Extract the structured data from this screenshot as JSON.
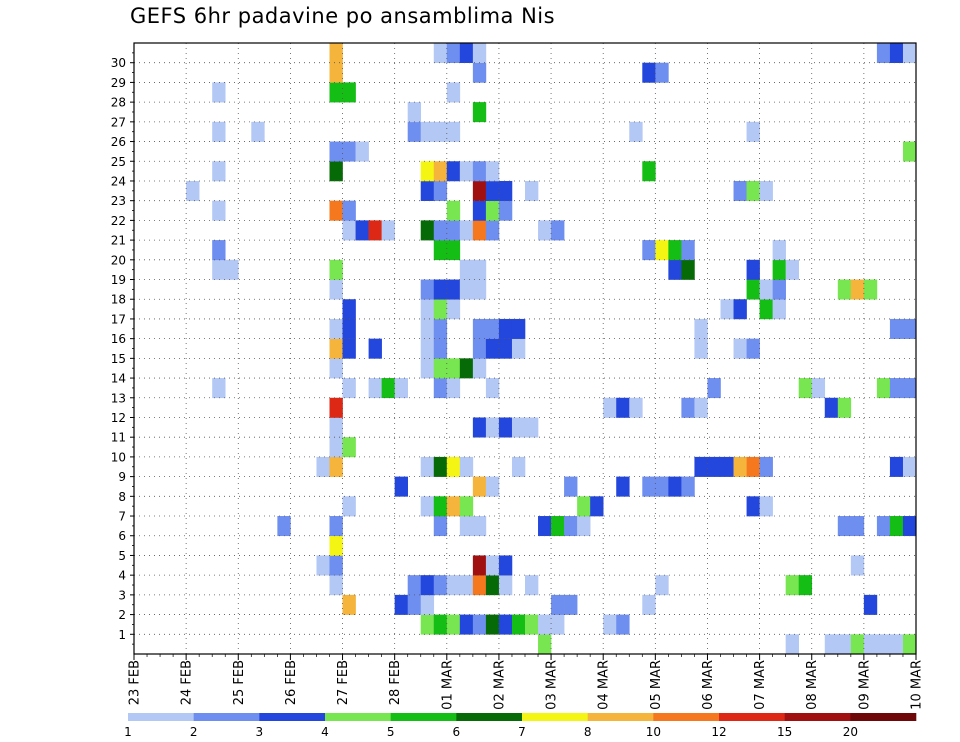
{
  "title": "GEFS 6hr padavine po ansamblima Nis",
  "chart_data": {
    "type": "heatmap",
    "title": "GEFS 6hr padavine po ansamblima Nis",
    "x_tick_labels": [
      "23 FEB",
      "24 FEB",
      "25 FEB",
      "26 FEB",
      "27 FEB",
      "28 FEB",
      "01 MAR",
      "02 MAR",
      "03 MAR",
      "04 MAR",
      "05 MAR",
      "06 MAR",
      "07 MAR",
      "08 MAR",
      "09 MAR",
      "10 MAR"
    ],
    "y_tick_labels": [
      "1",
      "2",
      "3",
      "4",
      "5",
      "6",
      "7",
      "8",
      "9",
      "10",
      "11",
      "12",
      "13",
      "14",
      "15",
      "16",
      "17",
      "18",
      "19",
      "20",
      "21",
      "22",
      "23",
      "24",
      "25",
      "26",
      "27",
      "28",
      "29",
      "30"
    ],
    "time_step": "6hr",
    "n_steps": 60,
    "members": 30,
    "grid": true,
    "colorbar": {
      "placement": "bottom",
      "tick_labels": [
        "1",
        "2",
        "3",
        "4",
        "5",
        "6",
        "7",
        "8",
        "10",
        "12",
        "15",
        "20"
      ],
      "colors": [
        "#b4c8f5",
        "#6e8ef0",
        "#2346dc",
        "#78e650",
        "#14be14",
        "#066b06",
        "#f5f514",
        "#f5b43c",
        "#f5781e",
        "#dc2814",
        "#a01010",
        "#6e0808"
      ]
    },
    "cells_format": "member: [[step, level], ...]",
    "cells": {
      "0": [
        [
          31,
          4
        ],
        [
          50,
          1
        ],
        [
          53,
          1
        ],
        [
          54,
          1
        ],
        [
          55,
          4
        ],
        [
          56,
          1
        ],
        [
          57,
          1
        ],
        [
          58,
          1
        ],
        [
          59,
          4
        ]
      ],
      "1": [
        [
          22,
          4
        ],
        [
          23,
          5
        ],
        [
          24,
          4
        ],
        [
          25,
          3
        ],
        [
          26,
          2
        ],
        [
          27,
          6
        ],
        [
          28,
          3
        ],
        [
          29,
          5
        ],
        [
          30,
          4
        ],
        [
          31,
          1
        ],
        [
          32,
          1
        ],
        [
          36,
          1
        ],
        [
          37,
          2
        ]
      ],
      "2": [
        [
          16,
          8
        ],
        [
          20,
          3
        ],
        [
          21,
          2
        ],
        [
          22,
          1
        ],
        [
          32,
          2
        ],
        [
          33,
          2
        ],
        [
          39,
          1
        ],
        [
          56,
          3
        ]
      ],
      "3": [
        [
          15,
          1
        ],
        [
          21,
          2
        ],
        [
          22,
          3
        ],
        [
          23,
          2
        ],
        [
          24,
          1
        ],
        [
          25,
          1
        ],
        [
          26,
          9
        ],
        [
          27,
          6
        ],
        [
          28,
          1
        ],
        [
          30,
          1
        ],
        [
          40,
          1
        ],
        [
          50,
          4
        ],
        [
          51,
          5
        ]
      ],
      "4": [
        [
          14,
          1
        ],
        [
          15,
          2
        ],
        [
          26,
          11
        ],
        [
          27,
          1
        ],
        [
          28,
          3
        ],
        [
          55,
          1
        ]
      ],
      "5": [
        [
          15,
          7
        ]
      ],
      "6": [
        [
          11,
          2
        ],
        [
          15,
          2
        ],
        [
          23,
          2
        ],
        [
          25,
          1
        ],
        [
          26,
          1
        ],
        [
          31,
          3
        ],
        [
          32,
          5
        ],
        [
          33,
          2
        ],
        [
          34,
          1
        ],
        [
          54,
          2
        ],
        [
          55,
          2
        ],
        [
          57,
          2
        ],
        [
          58,
          5
        ],
        [
          59,
          3
        ]
      ],
      "7": [
        [
          16,
          1
        ],
        [
          22,
          1
        ],
        [
          23,
          5
        ],
        [
          24,
          8
        ],
        [
          25,
          4
        ],
        [
          34,
          4
        ],
        [
          35,
          3
        ],
        [
          47,
          3
        ],
        [
          48,
          1
        ]
      ],
      "8": [
        [
          20,
          3
        ],
        [
          26,
          8
        ],
        [
          27,
          1
        ],
        [
          33,
          2
        ],
        [
          37,
          3
        ],
        [
          39,
          2
        ],
        [
          40,
          2
        ],
        [
          41,
          3
        ],
        [
          42,
          2
        ]
      ],
      "9": [
        [
          14,
          1
        ],
        [
          15,
          8
        ],
        [
          22,
          1
        ],
        [
          23,
          6
        ],
        [
          24,
          7
        ],
        [
          25,
          1
        ],
        [
          29,
          1
        ],
        [
          43,
          3
        ],
        [
          44,
          3
        ],
        [
          45,
          3
        ],
        [
          46,
          8
        ],
        [
          47,
          9
        ],
        [
          48,
          2
        ],
        [
          58,
          3
        ],
        [
          59,
          1
        ]
      ],
      "10": [
        [
          15,
          1
        ],
        [
          16,
          4
        ]
      ],
      "11": [
        [
          15,
          1
        ],
        [
          26,
          3
        ],
        [
          27,
          1
        ],
        [
          28,
          3
        ],
        [
          29,
          1
        ],
        [
          30,
          1
        ]
      ],
      "12": [
        [
          15,
          10
        ],
        [
          36,
          1
        ],
        [
          37,
          3
        ],
        [
          38,
          1
        ],
        [
          42,
          2
        ],
        [
          43,
          1
        ],
        [
          53,
          3
        ],
        [
          54,
          4
        ]
      ],
      "13": [
        [
          6,
          1
        ],
        [
          16,
          1
        ],
        [
          18,
          1
        ],
        [
          19,
          5
        ],
        [
          20,
          1
        ],
        [
          23,
          2
        ],
        [
          24,
          1
        ],
        [
          27,
          1
        ],
        [
          44,
          2
        ],
        [
          51,
          4
        ],
        [
          52,
          1
        ],
        [
          57,
          4
        ],
        [
          58,
          2
        ],
        [
          59,
          2
        ]
      ],
      "14": [
        [
          15,
          1
        ],
        [
          22,
          1
        ],
        [
          23,
          4
        ],
        [
          24,
          4
        ],
        [
          25,
          6
        ],
        [
          26,
          1
        ]
      ],
      "15": [
        [
          15,
          8
        ],
        [
          16,
          3
        ],
        [
          18,
          3
        ],
        [
          22,
          1
        ],
        [
          23,
          2
        ],
        [
          26,
          2
        ],
        [
          27,
          3
        ],
        [
          28,
          3
        ],
        [
          29,
          1
        ],
        [
          43,
          1
        ],
        [
          46,
          1
        ],
        [
          47,
          2
        ]
      ],
      "16": [
        [
          15,
          1
        ],
        [
          16,
          3
        ],
        [
          22,
          1
        ],
        [
          23,
          2
        ],
        [
          26,
          2
        ],
        [
          27,
          2
        ],
        [
          28,
          3
        ],
        [
          29,
          3
        ],
        [
          43,
          1
        ],
        [
          58,
          2
        ],
        [
          59,
          2
        ]
      ],
      "17": [
        [
          16,
          3
        ],
        [
          22,
          1
        ],
        [
          23,
          4
        ],
        [
          24,
          1
        ],
        [
          45,
          1
        ],
        [
          46,
          3
        ],
        [
          48,
          5
        ],
        [
          49,
          1
        ]
      ],
      "18": [
        [
          15,
          1
        ],
        [
          22,
          2
        ],
        [
          23,
          3
        ],
        [
          24,
          3
        ],
        [
          25,
          1
        ],
        [
          26,
          1
        ],
        [
          47,
          5
        ],
        [
          48,
          1
        ],
        [
          49,
          2
        ],
        [
          54,
          4
        ],
        [
          55,
          8
        ],
        [
          56,
          4
        ]
      ],
      "19": [
        [
          6,
          1
        ],
        [
          7,
          1
        ],
        [
          15,
          4
        ],
        [
          25,
          1
        ],
        [
          26,
          1
        ],
        [
          41,
          3
        ],
        [
          42,
          6
        ],
        [
          47,
          3
        ],
        [
          49,
          5
        ],
        [
          50,
          1
        ]
      ],
      "20": [
        [
          6,
          2
        ],
        [
          23,
          5
        ],
        [
          24,
          5
        ],
        [
          39,
          2
        ],
        [
          40,
          7
        ],
        [
          41,
          5
        ],
        [
          42,
          2
        ],
        [
          49,
          1
        ]
      ],
      "21": [
        [
          16,
          1
        ],
        [
          17,
          3
        ],
        [
          18,
          10
        ],
        [
          19,
          1
        ],
        [
          22,
          6
        ],
        [
          23,
          2
        ],
        [
          24,
          2
        ],
        [
          25,
          1
        ],
        [
          26,
          9
        ],
        [
          27,
          2
        ],
        [
          31,
          1
        ],
        [
          32,
          2
        ]
      ],
      "22": [
        [
          6,
          1
        ],
        [
          15,
          9
        ],
        [
          16,
          2
        ],
        [
          24,
          4
        ],
        [
          26,
          3
        ],
        [
          27,
          4
        ],
        [
          28,
          2
        ]
      ],
      "23": [
        [
          4,
          1
        ],
        [
          22,
          3
        ],
        [
          23,
          2
        ],
        [
          26,
          11
        ],
        [
          27,
          3
        ],
        [
          28,
          3
        ],
        [
          30,
          1
        ],
        [
          46,
          2
        ],
        [
          47,
          4
        ],
        [
          48,
          1
        ]
      ],
      "24": [
        [
          6,
          1
        ],
        [
          15,
          6
        ],
        [
          22,
          7
        ],
        [
          23,
          8
        ],
        [
          24,
          3
        ],
        [
          25,
          1
        ],
        [
          26,
          2
        ],
        [
          27,
          1
        ],
        [
          39,
          5
        ]
      ],
      "25": [
        [
          15,
          2
        ],
        [
          16,
          2
        ],
        [
          17,
          1
        ],
        [
          59,
          4
        ]
      ],
      "26": [
        [
          6,
          1
        ],
        [
          9,
          1
        ],
        [
          21,
          2
        ],
        [
          22,
          1
        ],
        [
          23,
          1
        ],
        [
          24,
          1
        ],
        [
          38,
          1
        ],
        [
          47,
          1
        ]
      ],
      "27": [
        [
          21,
          1
        ],
        [
          26,
          5
        ]
      ],
      "28": [
        [
          6,
          1
        ],
        [
          15,
          5
        ],
        [
          16,
          5
        ],
        [
          24,
          1
        ]
      ],
      "29": [
        [
          15,
          8
        ],
        [
          26,
          2
        ],
        [
          39,
          3
        ],
        [
          40,
          2
        ]
      ],
      "30": [
        [
          15,
          8
        ],
        [
          23,
          1
        ],
        [
          24,
          2
        ],
        [
          25,
          3
        ],
        [
          26,
          1
        ],
        [
          57,
          2
        ],
        [
          58,
          3
        ],
        [
          59,
          1
        ]
      ]
    }
  }
}
